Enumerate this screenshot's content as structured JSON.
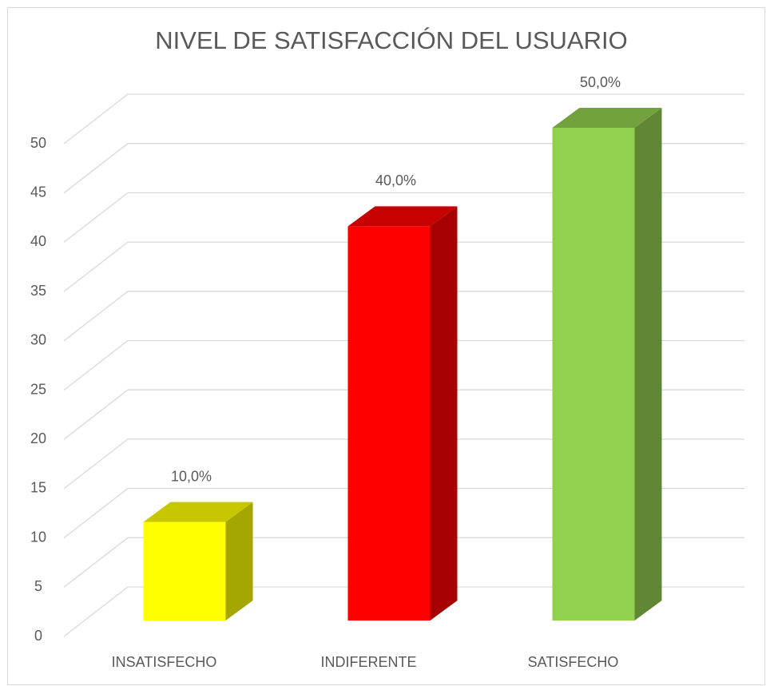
{
  "chart_data": {
    "type": "bar3d",
    "title": "NIVEL DE SATISFACCIÓN DEL USUARIO",
    "categories": [
      "INSATISFECHO",
      "INDIFERENTE",
      "SATISFECHO"
    ],
    "values": [
      10,
      40,
      50
    ],
    "value_labels": [
      "10,0%",
      "40,0%",
      "50,0%"
    ],
    "colors": [
      "#ffff00",
      "#ff0000",
      "#92d050"
    ],
    "ylim": [
      0,
      50
    ],
    "yticks": [
      0,
      5,
      10,
      15,
      20,
      25,
      30,
      35,
      40,
      45,
      50
    ],
    "grid": true
  }
}
